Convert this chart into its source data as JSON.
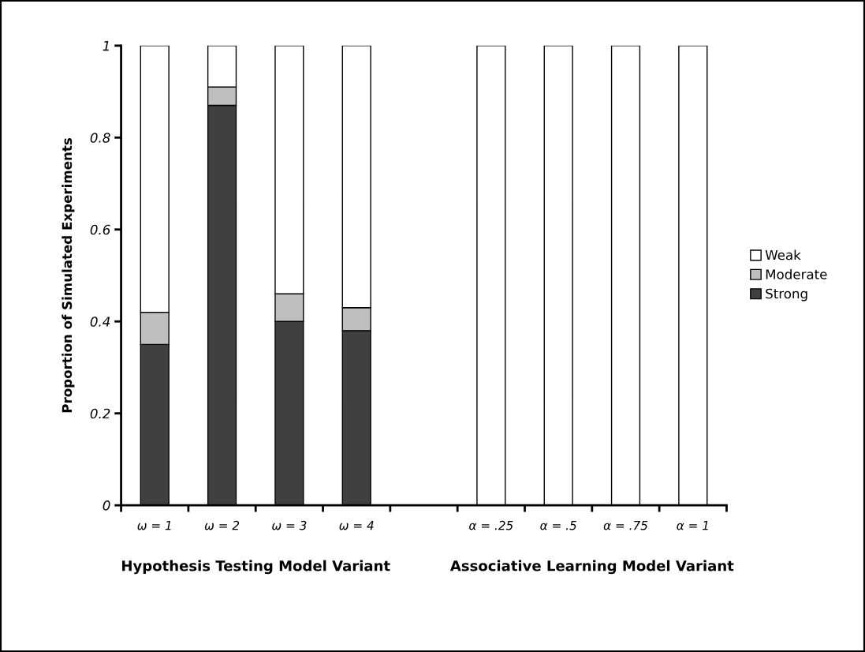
{
  "chart_data": {
    "type": "bar",
    "stacked": true,
    "ylabel": "Proportion of Simulated Experiments",
    "categories": [
      "ω = 1",
      "ω = 2",
      "ω = 3",
      "ω = 4",
      null,
      "α = .25",
      "α = .5",
      "α = .75",
      "α = 1"
    ],
    "series": [
      {
        "name": "Strong",
        "color": "#404040",
        "values": [
          0.35,
          0.87,
          0.4,
          0.38,
          null,
          0,
          0,
          0,
          0
        ]
      },
      {
        "name": "Moderate",
        "color": "#bfbfbf",
        "values": [
          0.07,
          0.04,
          0.06,
          0.05,
          null,
          0,
          0,
          0,
          0
        ]
      },
      {
        "name": "Weak",
        "color": "#ffffff",
        "values": [
          0.58,
          0.09,
          0.54,
          0.57,
          null,
          1,
          1,
          1,
          1
        ]
      }
    ],
    "ylim": [
      0,
      1
    ],
    "yticks": [
      0,
      0.2,
      0.4,
      0.6,
      0.8,
      1
    ],
    "legend": "right",
    "grid": false,
    "annotations": [
      "Hypothesis Testing Model Variant",
      "Associative Learning Model Variant"
    ]
  }
}
